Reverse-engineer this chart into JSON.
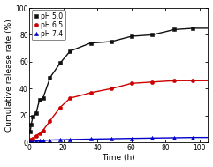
{
  "title": "",
  "xlabel": "Time (h)",
  "ylabel": "Cumulative release rate (%)",
  "xlim": [
    0,
    105
  ],
  "ylim": [
    0,
    100
  ],
  "xticks": [
    0,
    20,
    40,
    60,
    80,
    100
  ],
  "yticks": [
    0,
    20,
    40,
    60,
    80,
    100
  ],
  "series": [
    {
      "label": "pH 5.0",
      "color": "#111111",
      "marker": "s",
      "x": [
        0.5,
        1,
        2,
        4,
        6,
        8,
        12,
        18,
        24,
        36,
        48,
        60,
        72,
        85,
        96
      ],
      "y": [
        8,
        13,
        19,
        22,
        32,
        33,
        48,
        59,
        68,
        74,
        75,
        79,
        80,
        84,
        85
      ]
    },
    {
      "label": "pH 6.5",
      "color": "#cc0000",
      "marker": "o",
      "x": [
        0.5,
        1,
        2,
        4,
        6,
        8,
        12,
        18,
        24,
        36,
        48,
        60,
        72,
        85,
        96
      ],
      "y": [
        1,
        2,
        3,
        5,
        7,
        9,
        16,
        26,
        33,
        37,
        40,
        44,
        45,
        46,
        46
      ]
    },
    {
      "label": "pH 7.4",
      "color": "#0000cc",
      "marker": "^",
      "x": [
        0.5,
        1,
        2,
        4,
        6,
        8,
        12,
        18,
        24,
        36,
        48,
        60,
        72,
        85,
        96
      ],
      "y": [
        0.3,
        0.5,
        0.8,
        1.0,
        1.2,
        1.5,
        1.8,
        2.0,
        2.2,
        2.5,
        2.8,
        3.0,
        3.2,
        3.5,
        3.7
      ]
    }
  ],
  "fit_x_max": 105,
  "background_color": "#ffffff",
  "markersize": 3.0,
  "linewidth": 1.0,
  "legend_fontsize": 5.5,
  "axis_label_fontsize": 6.5,
  "tick_fontsize": 5.5
}
